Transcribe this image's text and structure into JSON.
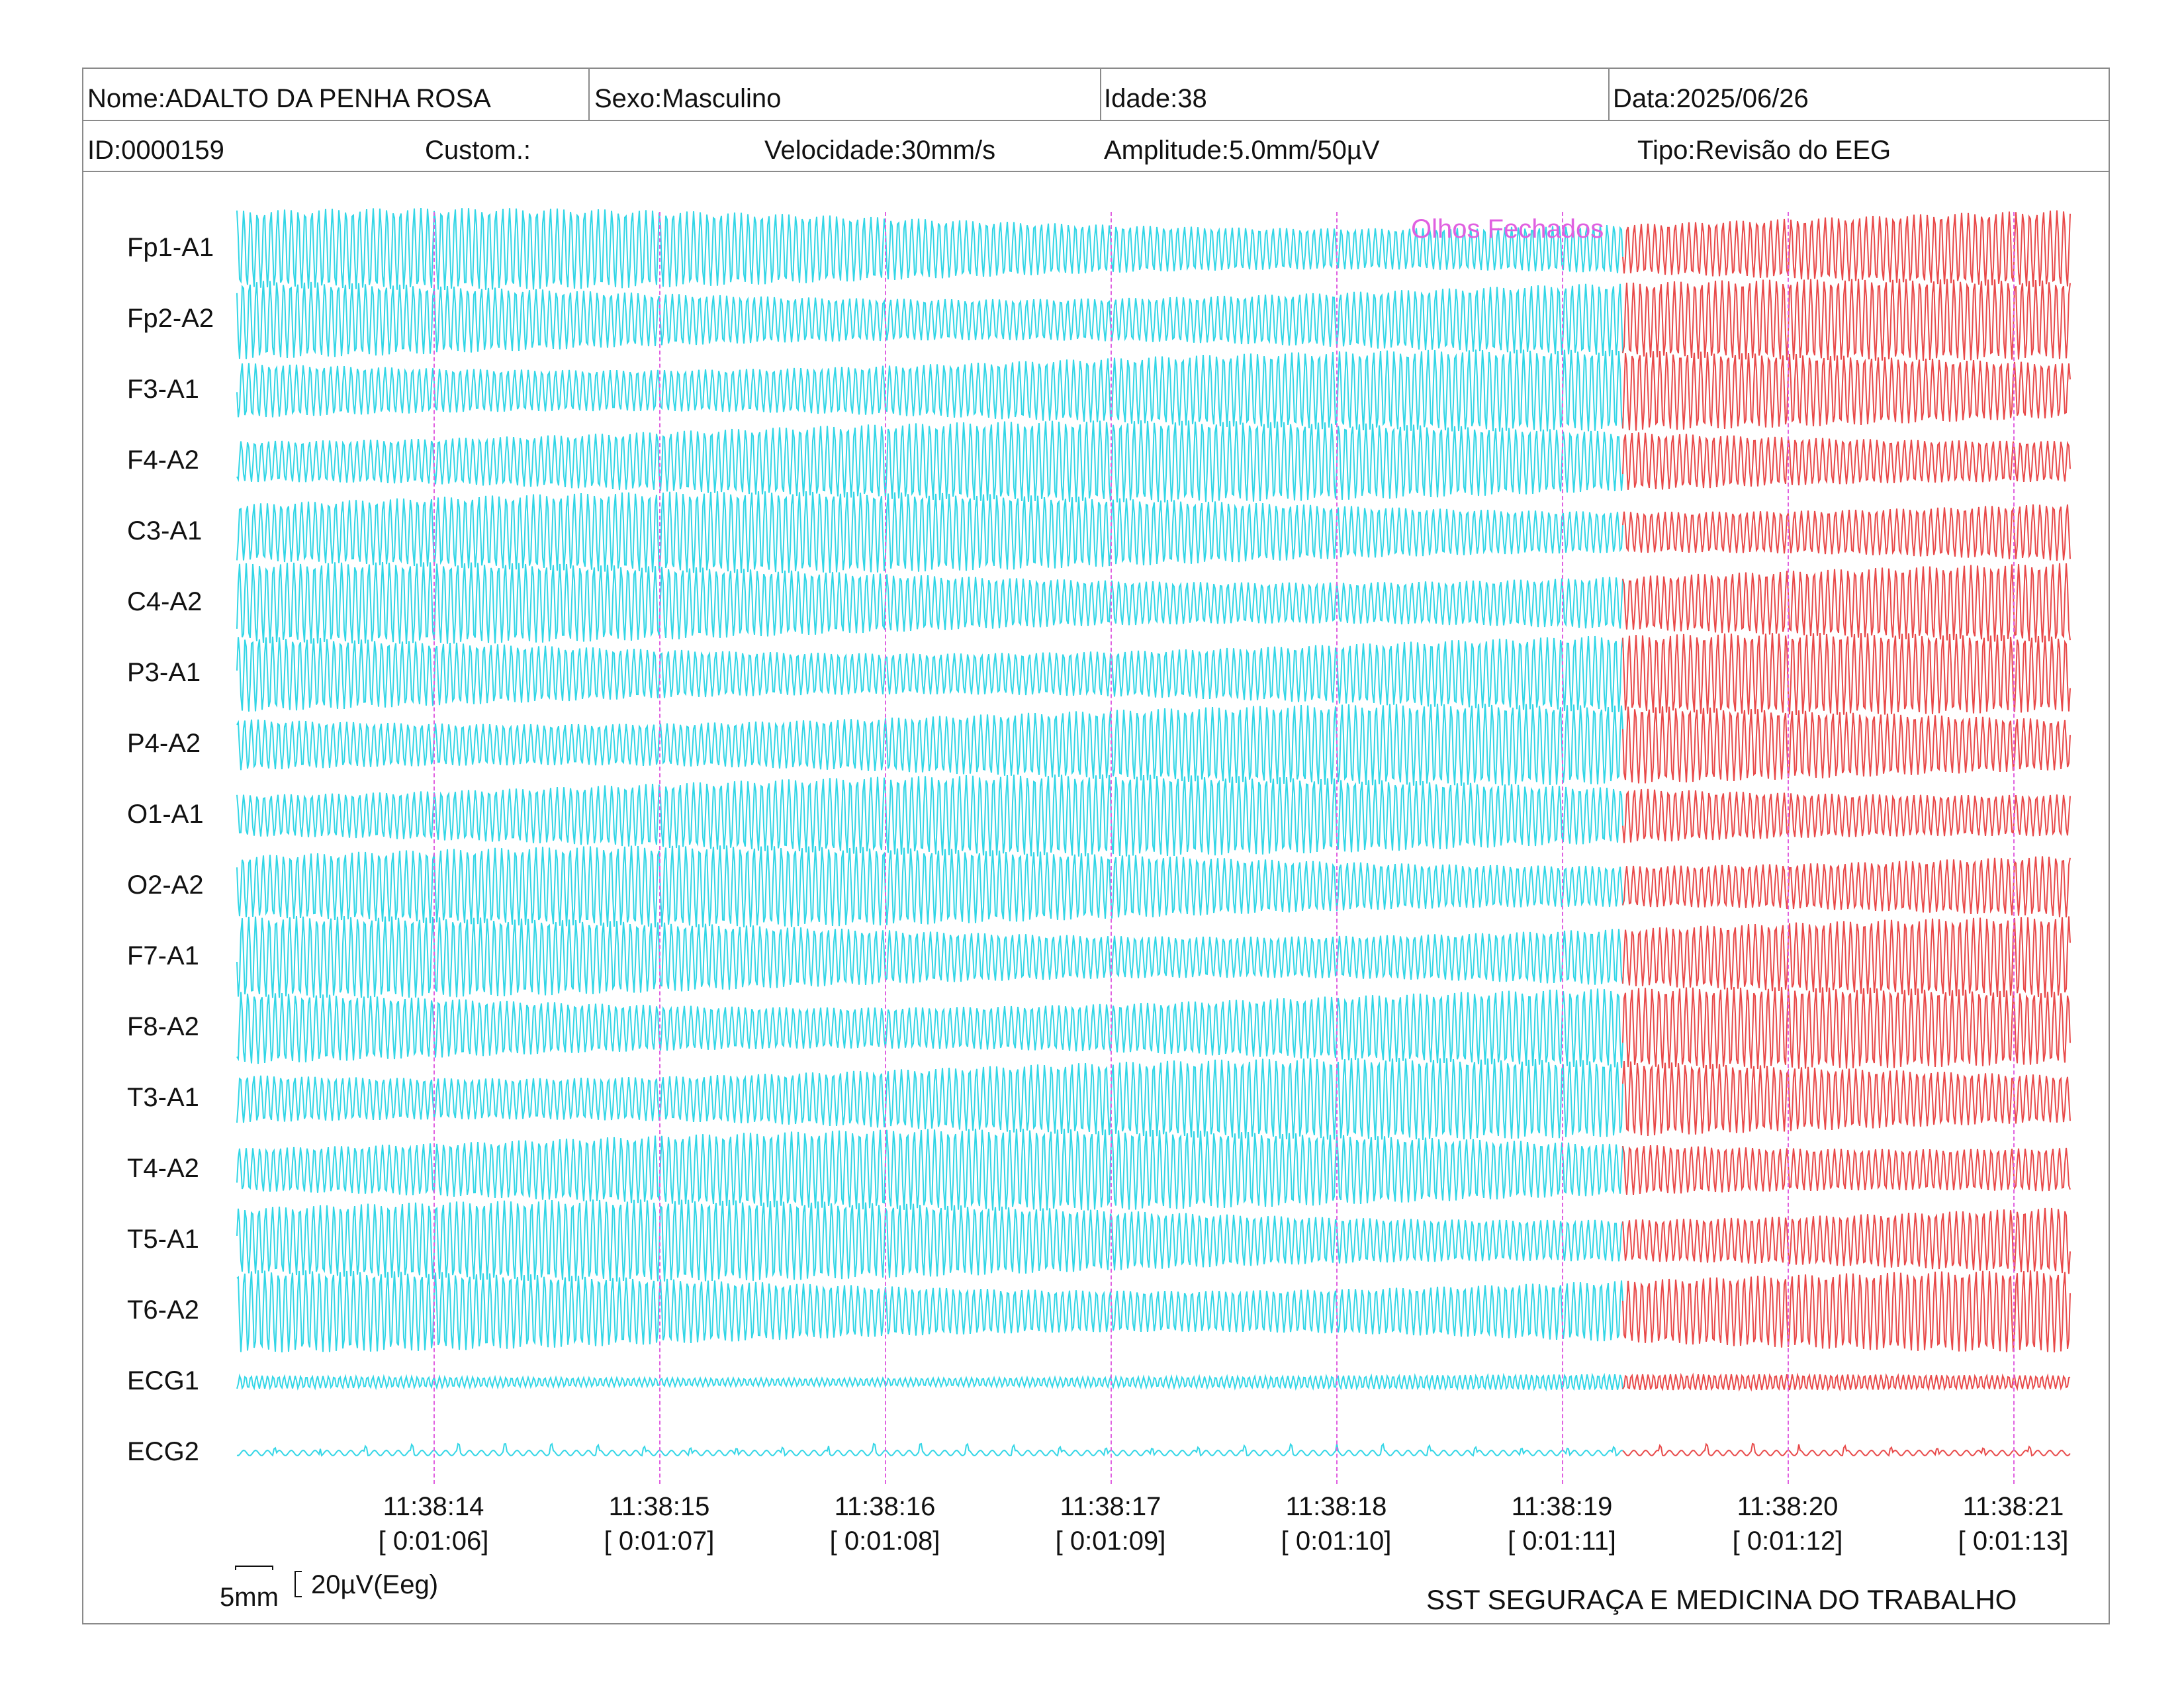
{
  "header": {
    "row1": {
      "name": "Nome:ADALTO DA PENHA ROSA",
      "sex": "Sexo:Masculino",
      "age": "Idade:38",
      "date": "Data:2025/06/26"
    },
    "row2": {
      "id": "ID:0000159",
      "custom": "Custom.:",
      "speed": "Velocidade:30mm/s",
      "amplitude": "Amplitude:5.0mm/50µV",
      "type": "Tipo:Revisão do EEG"
    }
  },
  "channels": [
    "Fp1-A1",
    "Fp2-A2",
    "F3-A1",
    "F4-A2",
    "C3-A1",
    "C4-A2",
    "P3-A1",
    "P4-A2",
    "O1-A1",
    "O2-A2",
    "F7-A1",
    "F8-A2",
    "T3-A1",
    "T4-A2",
    "T5-A1",
    "T6-A2",
    "ECG1",
    "ECG2"
  ],
  "event": {
    "label": "Olhos Fechados"
  },
  "time_ticks": [
    {
      "clock": "11:38:14",
      "elapsed": "[ 0:01:06]"
    },
    {
      "clock": "11:38:15",
      "elapsed": "[ 0:01:07]"
    },
    {
      "clock": "11:38:16",
      "elapsed": "[ 0:01:08]"
    },
    {
      "clock": "11:38:17",
      "elapsed": "[ 0:01:09]"
    },
    {
      "clock": "11:38:18",
      "elapsed": "[ 0:01:10]"
    },
    {
      "clock": "11:38:19",
      "elapsed": "[ 0:01:11]"
    },
    {
      "clock": "11:38:20",
      "elapsed": "[ 0:01:12]"
    },
    {
      "clock": "11:38:21",
      "elapsed": "[ 0:01:13]"
    }
  ],
  "scale": {
    "horizontal": "5mm",
    "vertical": "20µV(Eeg)"
  },
  "footer": {
    "company": "SST SEGURAÇA E MEDICINA DO TRABALHO"
  },
  "colors": {
    "trace_before": "#33d6e6",
    "trace_after": "#e84a4a",
    "marker": "#e060e0",
    "border": "#8a8a8a"
  }
}
